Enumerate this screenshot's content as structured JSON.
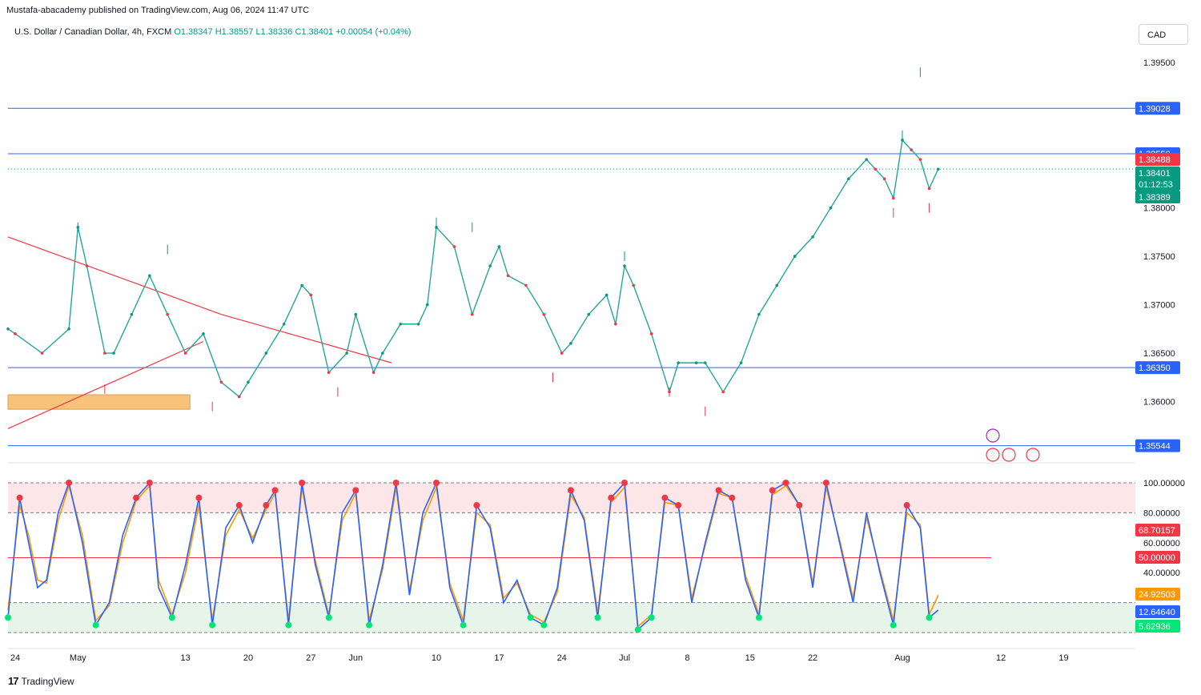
{
  "header": {
    "publisher_text": "Mustafa-abacademy published on TradingView.com, Aug 06, 2024 11:47 UTC",
    "symbol": "U.S. Dollar / Canadian Dollar, 4h, FXCM",
    "open": "O1.38347",
    "high": "H1.38557",
    "low": "L1.38336",
    "close": "C1.38401",
    "change": "+0.00054 (+0.04%)"
  },
  "currency_button": "CAD",
  "footer": {
    "logo_text": "TradingView"
  },
  "colors": {
    "up": "#089981",
    "down": "#f23645",
    "level": "#2962ff",
    "trendline": "#f23645",
    "zone": "#f7c27a",
    "stoch_k": "#2962ff",
    "stoch_d": "#ff9800"
  },
  "chart_data": [
    {
      "type": "line",
      "name": "price",
      "ylim": [
        1.3545,
        1.3975
      ],
      "y_ticks": [
        "1.39500",
        "1.38000",
        "1.37500",
        "1.37000",
        "1.36500",
        "1.36000"
      ],
      "x_ticks": [
        "24",
        "May",
        "13",
        "20",
        "27",
        "Jun",
        "10",
        "17",
        "24",
        "Jul",
        "8",
        "15",
        "22",
        "Aug",
        "12",
        "19"
      ],
      "x_tick_days": [
        -7,
        0,
        12,
        19,
        26,
        31,
        40,
        47,
        54,
        61,
        68,
        75,
        82,
        92,
        103,
        110
      ],
      "x_range_days": [
        -7.8,
        118
      ],
      "horizontal_levels": [
        {
          "value": 1.39028,
          "label": "1.39028"
        },
        {
          "value": 1.38559,
          "label": "1.38559"
        },
        {
          "value": 1.3635,
          "label": "1.36350"
        },
        {
          "value": 1.35544,
          "label": "1.35544"
        }
      ],
      "price_tags": [
        {
          "value": 1.38488,
          "label": "1.38488",
          "color": "#f23645"
        },
        {
          "value": 1.38401,
          "label": "1.38401",
          "color": "#089981"
        },
        {
          "value": 1.38299,
          "label": "01:12:53",
          "color": "#089981"
        },
        {
          "value": 1.38389,
          "label": "1.38389",
          "color": "#089981"
        }
      ],
      "series": [
        {
          "name": "USDCAD close",
          "x_days": [
            -7.8,
            -7,
            -4,
            -1,
            0,
            1,
            3,
            4,
            6,
            8,
            10,
            12,
            14,
            16,
            18,
            19,
            21,
            23,
            25,
            26,
            28,
            30,
            31,
            33,
            34,
            36,
            38,
            39,
            40,
            42,
            44,
            46,
            47,
            48,
            50,
            52,
            54,
            55,
            57,
            59,
            60,
            61,
            62,
            64,
            66,
            67,
            69,
            70,
            72,
            74,
            76,
            78,
            80,
            82,
            84,
            86,
            88,
            89,
            90,
            91,
            92,
            93,
            94,
            95,
            96
          ],
          "y": [
            1.3675,
            1.367,
            1.365,
            1.3675,
            1.378,
            1.374,
            1.365,
            1.365,
            1.369,
            1.373,
            1.369,
            1.365,
            1.367,
            1.362,
            1.3605,
            1.362,
            1.365,
            1.368,
            1.372,
            1.371,
            1.363,
            1.365,
            1.369,
            1.363,
            1.365,
            1.368,
            1.368,
            1.37,
            1.378,
            1.376,
            1.369,
            1.374,
            1.376,
            1.373,
            1.372,
            1.369,
            1.365,
            1.366,
            1.369,
            1.371,
            1.368,
            1.374,
            1.372,
            1.367,
            1.361,
            1.364,
            1.364,
            1.364,
            1.361,
            1.364,
            1.369,
            1.372,
            1.375,
            1.377,
            1.38,
            1.383,
            1.385,
            1.384,
            1.383,
            1.381,
            1.387,
            1.386,
            1.385,
            1.382,
            1.384
          ]
        },
        {
          "name": "USDCAD high",
          "x_days": [
            0,
            10,
            40,
            44,
            61,
            92,
            94
          ],
          "y": [
            1.3785,
            1.3762,
            1.379,
            1.3785,
            1.3755,
            1.388,
            1.3945
          ]
        },
        {
          "name": "USDCAD low",
          "x_days": [
            3,
            15,
            29,
            53,
            66,
            70,
            91,
            95
          ],
          "y": [
            1.3608,
            1.359,
            1.3605,
            1.362,
            1.3605,
            1.3585,
            1.379,
            1.3795
          ]
        }
      ],
      "trendlines": [
        {
          "x_days": [
            -7.8,
            16
          ],
          "y": [
            1.377,
            1.369
          ]
        },
        {
          "x_days": [
            16,
            35
          ],
          "y": [
            1.369,
            1.364
          ]
        },
        {
          "x_days": [
            -7.8,
            14
          ],
          "y": [
            1.3572,
            1.3662
          ]
        }
      ],
      "zone": {
        "x_days": [
          -7.8,
          12.5
        ],
        "y": [
          1.3592,
          1.3607
        ]
      }
    },
    {
      "type": "line",
      "name": "stochastic",
      "ylim": [
        0,
        100
      ],
      "y_ticks": [
        "100.00000",
        "80.00000",
        "60.00000",
        "40.00000"
      ],
      "levels": [
        100,
        80,
        50,
        20,
        0
      ],
      "value_tags": [
        {
          "value": 68.70157,
          "label": "68.70157",
          "color": "#f23645"
        },
        {
          "value": 50.0,
          "label": "50.00000",
          "color": "#f23645"
        },
        {
          "value": 24.92503,
          "label": "24.92503",
          "color": "#ff9800"
        },
        {
          "value": 12.6464,
          "label": "12.64640",
          "color": "#2962ff"
        },
        {
          "value": 5.62936,
          "label": "5.62936",
          "color": "#00e676"
        }
      ],
      "series": [
        {
          "name": "%K",
          "x_days": [
            -7.8,
            -6.5,
            -5.5,
            -4.5,
            -3.5,
            -2.2,
            -1,
            0.5,
            2,
            3.5,
            5,
            6.5,
            8,
            9,
            10.5,
            12,
            13.5,
            15,
            16.5,
            18,
            19.5,
            21,
            22,
            23.5,
            25,
            26.5,
            28,
            29.5,
            31,
            32.5,
            34,
            35.5,
            37,
            38.5,
            40,
            41.5,
            43,
            44.5,
            46,
            47.5,
            49,
            50.5,
            52,
            53.5,
            55,
            56.5,
            58,
            59.5,
            61,
            62.5,
            64,
            65.5,
            67,
            68.5,
            70,
            71.5,
            73,
            74.5,
            76,
            77.5,
            79,
            80.5,
            82,
            83.5,
            85,
            86.5,
            88,
            89.5,
            91,
            92.5,
            94,
            95,
            96
          ],
          "y": [
            10,
            90,
            60,
            30,
            35,
            80,
            100,
            60,
            5,
            20,
            65,
            90,
            100,
            30,
            10,
            45,
            90,
            5,
            70,
            85,
            60,
            85,
            95,
            5,
            100,
            45,
            10,
            80,
            95,
            5,
            45,
            100,
            25,
            80,
            100,
            30,
            5,
            85,
            70,
            20,
            35,
            10,
            5,
            30,
            95,
            75,
            10,
            90,
            100,
            2,
            10,
            90,
            85,
            20,
            60,
            95,
            90,
            35,
            10,
            95,
            100,
            85,
            30,
            100,
            60,
            20,
            80,
            40,
            5,
            85,
            70,
            10,
            15
          ]
        },
        {
          "name": "%D",
          "x_days": [
            -7.8,
            -6.5,
            -5.5,
            -4.5,
            -3.5,
            -2.2,
            -1,
            0.5,
            2,
            3.5,
            5,
            6.5,
            8,
            9,
            10.5,
            12,
            13.5,
            15,
            16.5,
            18,
            19.5,
            21,
            22,
            23.5,
            25,
            26.5,
            28,
            29.5,
            31,
            32.5,
            34,
            35.5,
            37,
            38.5,
            40,
            41.5,
            43,
            44.5,
            46,
            47.5,
            49,
            50.5,
            52,
            53.5,
            55,
            56.5,
            58,
            59.5,
            61,
            62.5,
            64,
            65.5,
            67,
            68.5,
            70,
            71.5,
            73,
            74.5,
            76,
            77.5,
            79,
            80.5,
            82,
            83.5,
            85,
            86.5,
            88,
            89.5,
            91,
            92.5,
            94,
            95,
            96
          ],
          "y": [
            15,
            85,
            65,
            35,
            33,
            75,
            98,
            65,
            8,
            18,
            60,
            88,
            98,
            35,
            12,
            40,
            85,
            8,
            65,
            82,
            63,
            82,
            93,
            8,
            97,
            48,
            12,
            75,
            93,
            8,
            42,
            97,
            28,
            75,
            97,
            33,
            8,
            80,
            72,
            23,
            33,
            12,
            7,
            27,
            92,
            77,
            13,
            87,
            97,
            4,
            12,
            87,
            85,
            23,
            58,
            93,
            90,
            38,
            12,
            92,
            98,
            85,
            33,
            97,
            62,
            23,
            77,
            42,
            8,
            80,
            72,
            12,
            25
          ]
        }
      ]
    }
  ]
}
